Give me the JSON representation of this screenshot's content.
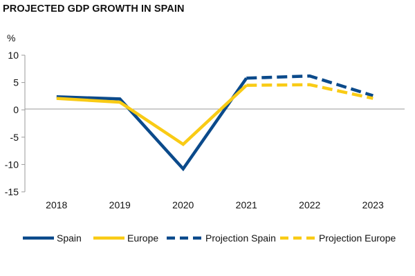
{
  "chart_data": {
    "type": "line",
    "title": "PROJECTED GDP GROWTH IN SPAIN",
    "ylabel": "%",
    "xlabel": "",
    "categories": [
      "2018",
      "2019",
      "2020",
      "2021",
      "2022",
      "2023"
    ],
    "ylim": [
      -15,
      10
    ],
    "yticks": [
      10,
      5,
      0,
      -5,
      -10,
      -15
    ],
    "grid": false,
    "legend_position": "bottom",
    "series": [
      {
        "name": "Spain",
        "style": "solid",
        "color": "#0B4A8B",
        "x": [
          "2018",
          "2019",
          "2020",
          "2021"
        ],
        "values": [
          2.4,
          2.0,
          -10.8,
          5.8
        ]
      },
      {
        "name": "Europe",
        "style": "solid",
        "color": "#F9CB15",
        "x": [
          "2018",
          "2019",
          "2020",
          "2021"
        ],
        "values": [
          2.1,
          1.4,
          -6.3,
          4.5
        ]
      },
      {
        "name": "Projection Spain",
        "style": "dashed",
        "color": "#0B4A8B",
        "x": [
          "2021",
          "2022",
          "2023"
        ],
        "values": [
          5.8,
          6.2,
          2.6
        ]
      },
      {
        "name": "Projection Europe",
        "style": "dashed",
        "color": "#F9CB15",
        "x": [
          "2021",
          "2022",
          "2023"
        ],
        "values": [
          4.5,
          4.6,
          2.1
        ]
      }
    ]
  }
}
